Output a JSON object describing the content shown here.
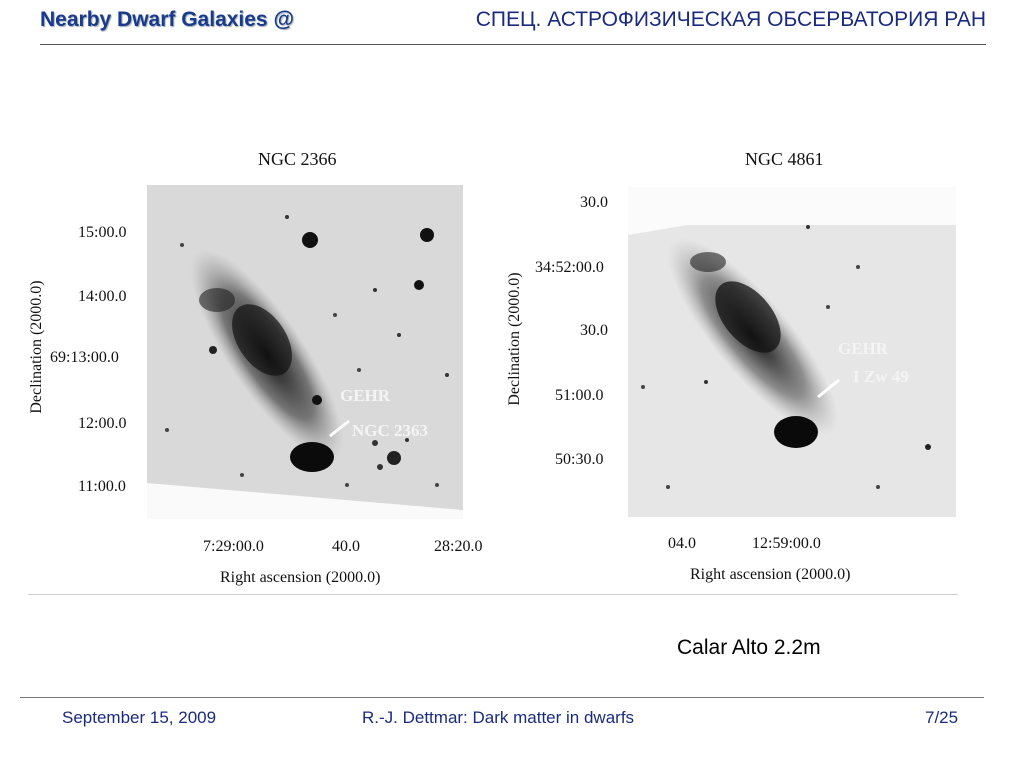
{
  "header": {
    "title": "Nearby Dwarf Galaxies @",
    "institution": "СПЕЦ. АСТРОФИЗИЧЕСКАЯ ОБСЕРВАТОРИЯ РАН"
  },
  "panel_left": {
    "title": "NGC 2366",
    "y_ticks": [
      "15:00.0",
      "14:00.0",
      "69:13:00.0",
      "12:00.0",
      "11:00.0"
    ],
    "x_ticks": [
      "7:29:00.0",
      "40.0",
      "28:20.0"
    ],
    "y_label": "Declination (2000.0)",
    "x_label": "Right ascension (2000.0)",
    "annotation_top": "GEHR",
    "annotation_bottom": "NGC 2363"
  },
  "panel_right": {
    "title": "NGC 4861",
    "y_ticks": [
      "30.0",
      "34:52:00.0",
      "30.0",
      "51:00.0",
      "50:30.0"
    ],
    "x_ticks": [
      "04.0",
      "12:59:00.0"
    ],
    "y_label": "Declination (2000.0)",
    "x_label": "Right  ascension (2000.0)",
    "annotation_top": "GEHR",
    "annotation_bottom": "I Zw 49"
  },
  "caption": "Calar Alto 2.2m",
  "footer": {
    "date": "September 15, 2009",
    "author_title": "R.-J. Dettmar: Dark matter in dwarfs",
    "page": "7/25"
  },
  "colors": {
    "header_blue": "#1a3a8f",
    "footer_blue": "#1a2b7f",
    "sky_background": "#dcdcdc"
  }
}
